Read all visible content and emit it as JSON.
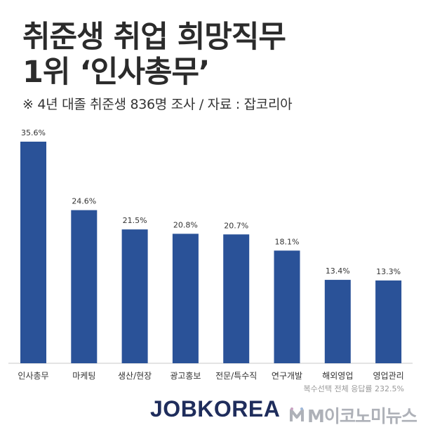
{
  "header": {
    "title_line1": "취준생 취업 희망직무",
    "title_line2": "1위 ‘인사총무’",
    "subtitle": "※ 4년 대졸 취준생 836명 조사 / 자료 : 잡코리아"
  },
  "chart_data": {
    "type": "bar",
    "categories": [
      "인사총무",
      "마케팅",
      "생산/현장",
      "광고홍보",
      "전문/특수직",
      "연구개발",
      "해외영업",
      "영업관리"
    ],
    "values": [
      35.6,
      24.6,
      21.5,
      20.8,
      20.7,
      18.1,
      13.4,
      13.3
    ],
    "value_labels": [
      "35.6%",
      "24.6%",
      "21.5%",
      "20.8%",
      "20.7%",
      "18.1%",
      "13.4%",
      "13.3%"
    ],
    "ylim": [
      0,
      35.6
    ],
    "grid": false,
    "bar_color": "#2a5298",
    "title": "",
    "xlabel": "",
    "ylabel": ""
  },
  "footnote": "복수선택 전체 응답률 232.5%",
  "brand": "JOBKOREA",
  "watermark": "M이코노미뉴스",
  "colors": {
    "bar": "#2a5298",
    "baseline": "#c8c8c8",
    "brand": "#1f2d5c"
  }
}
